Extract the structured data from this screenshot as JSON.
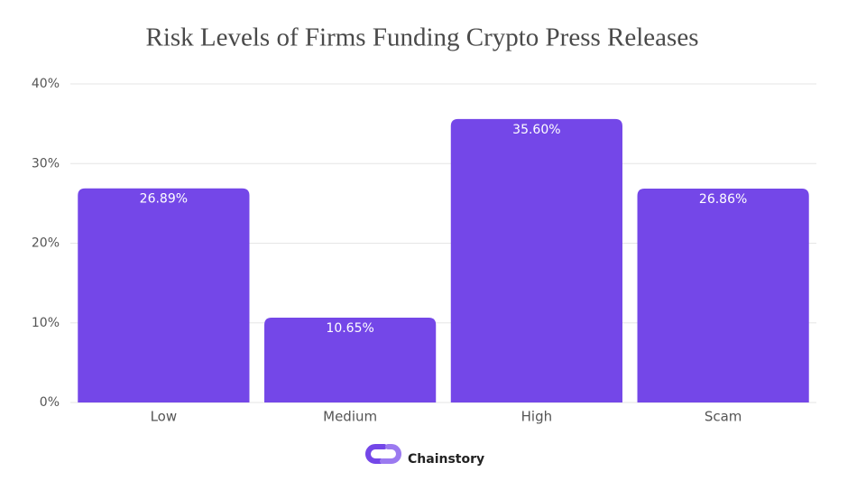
{
  "chart_data": {
    "type": "bar",
    "title": "Risk Levels of Firms Funding Crypto Press Releases",
    "categories": [
      "Low",
      "Medium",
      "High",
      "Scam"
    ],
    "values": [
      26.89,
      10.65,
      35.6,
      26.86
    ],
    "value_labels": [
      "26.89%",
      "10.65%",
      "35.60%",
      "26.86%"
    ],
    "color": "#7447e8",
    "ylim": [
      0,
      40
    ],
    "yticks": [
      {
        "value": 0,
        "label": "0%"
      },
      {
        "value": 10,
        "label": "10%"
      },
      {
        "value": 20,
        "label": "20%"
      },
      {
        "value": 30,
        "label": "30%"
      },
      {
        "value": 40,
        "label": "40%"
      }
    ],
    "grid": true,
    "brand": "Chainstory"
  }
}
